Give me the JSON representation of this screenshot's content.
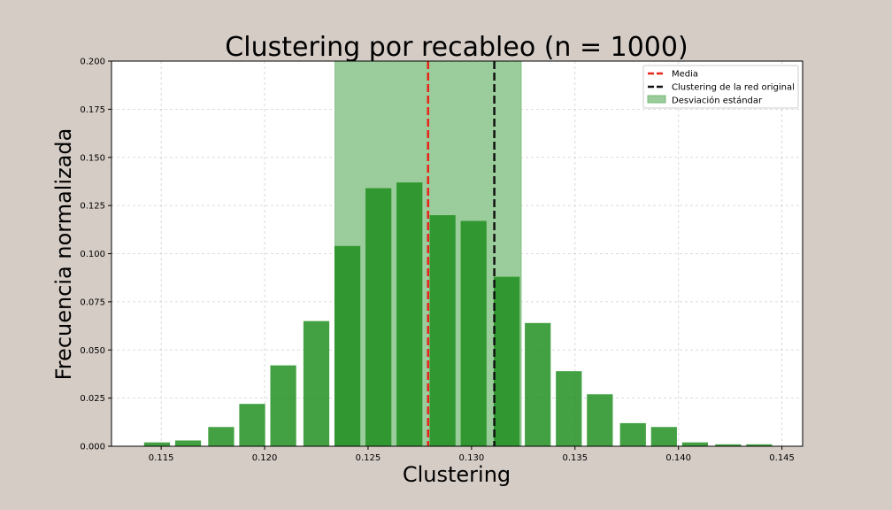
{
  "chart_data": {
    "type": "bar",
    "title": "Clustering por recableo (n = 1000)",
    "xlabel": "Clustering",
    "ylabel": "Frecuencia normalizada",
    "xlim": [
      0.1126,
      0.146
    ],
    "ylim": [
      0,
      0.2
    ],
    "xticks": [
      "0.115",
      "0.120",
      "0.125",
      "0.130",
      "0.135",
      "0.140",
      "0.145"
    ],
    "yticks": [
      "0.000",
      "0.025",
      "0.050",
      "0.075",
      "0.100",
      "0.125",
      "0.150",
      "0.175",
      "0.200"
    ],
    "grid": true,
    "bar_width": 0.00125,
    "bar_color": "#1a8c1a",
    "bars": [
      {
        "x": 0.1148,
        "y": 0.002
      },
      {
        "x": 0.1163,
        "y": 0.003
      },
      {
        "x": 0.1179,
        "y": 0.01
      },
      {
        "x": 0.1194,
        "y": 0.022
      },
      {
        "x": 0.1209,
        "y": 0.042
      },
      {
        "x": 0.1225,
        "y": 0.065
      },
      {
        "x": 0.124,
        "y": 0.104
      },
      {
        "x": 0.1255,
        "y": 0.134
      },
      {
        "x": 0.127,
        "y": 0.137
      },
      {
        "x": 0.1286,
        "y": 0.12
      },
      {
        "x": 0.1301,
        "y": 0.117
      },
      {
        "x": 0.1317,
        "y": 0.088
      },
      {
        "x": 0.1332,
        "y": 0.064
      },
      {
        "x": 0.1347,
        "y": 0.039
      },
      {
        "x": 0.1362,
        "y": 0.027
      },
      {
        "x": 0.1378,
        "y": 0.012
      },
      {
        "x": 0.1393,
        "y": 0.01
      },
      {
        "x": 0.1408,
        "y": 0.002
      },
      {
        "x": 0.1424,
        "y": 0.001
      },
      {
        "x": 0.1439,
        "y": 0.001
      }
    ],
    "mean": 0.1279,
    "original_clustering": 0.1311,
    "std_band": [
      0.1234,
      0.1324
    ],
    "colors": {
      "mean_line": "#e8251b",
      "original_line": "#111111",
      "std_band": "#9bcc9b"
    },
    "legend": {
      "position": "top-right",
      "entries": [
        {
          "label": "Media",
          "kind": "line",
          "color": "#e8251b"
        },
        {
          "label": "Clustering de la red original",
          "kind": "line",
          "color": "#111111"
        },
        {
          "label": "Desviación estándar",
          "kind": "patch",
          "color": "#9bcc9b"
        }
      ]
    }
  }
}
